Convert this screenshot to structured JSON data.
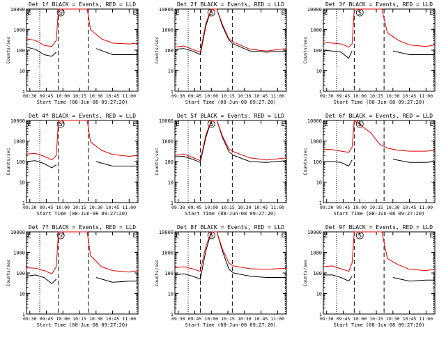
{
  "figure": {
    "start_time_label": "Start Time (08-Jun-08 09:27:20)",
    "ylabel": "Counts/sec"
  },
  "colors": {
    "events": "#000000",
    "lld": "#e00000",
    "axes": "#000000"
  },
  "chart_data": [
    {
      "type": "line",
      "title": "Det 1f BLACK = Events, RED = LLD",
      "xlabel": "Start Time (08-Jun-08 09:27:20)",
      "ylabel": "Counts/sec",
      "yscale": "log",
      "ylim": [
        1,
        10000
      ],
      "x_ticks": [
        "09:30",
        "09:45",
        "10:00",
        "10:15",
        "10:30",
        "10:45",
        "11:00"
      ],
      "y_ticks": [
        "1",
        "10",
        "100",
        "1000",
        "10000"
      ],
      "markers": [
        {
          "label": "E",
          "x": "09:27"
        },
        {
          "label": "S",
          "x": "09:58"
        },
        {
          "label": "E",
          "x": "11:05"
        }
      ],
      "dotted_lines": [
        "09:39",
        "11:07"
      ],
      "dashed_lines": [
        "09:56",
        "10:23"
      ],
      "series": [
        {
          "name": "Events",
          "color": "#000000",
          "x": [
            "09:27",
            "09:35",
            "09:43",
            "09:50",
            "09:54",
            "09:55",
            "10:23",
            "10:30",
            "10:45",
            "11:00",
            "11:08"
          ],
          "values": [
            140,
            110,
            60,
            50,
            80,
            null,
            null,
            120,
            60,
            60,
            60
          ]
        },
        {
          "name": "LLD",
          "color": "#e00000",
          "x": [
            "09:27",
            "09:35",
            "09:43",
            "09:50",
            "09:54",
            "09:56",
            "10:22",
            "10:25",
            "10:35",
            "10:45",
            "11:00",
            "11:08"
          ],
          "values": [
            350,
            300,
            170,
            150,
            300,
            10000,
            10000,
            1000,
            350,
            220,
            200,
            220
          ]
        }
      ]
    },
    {
      "type": "line",
      "title": "Det 2f BLACK = Events, RED = LLD",
      "xlabel": "Start Time (08-Jun-08 09:27:20)",
      "ylabel": "Counts/sec",
      "yscale": "log",
      "ylim": [
        1,
        10000
      ],
      "x_ticks": [
        "09:30",
        "09:45",
        "10:00",
        "10:15",
        "10:30",
        "10:45",
        "11:00"
      ],
      "y_ticks": [
        "1",
        "10",
        "100",
        "1000",
        "10000"
      ],
      "markers": [
        {
          "label": "E",
          "x": "09:27"
        },
        {
          "label": "S",
          "x": "10:00"
        },
        {
          "label": "E",
          "x": "11:05"
        }
      ],
      "dotted_lines": [
        "09:39",
        "11:07"
      ],
      "dashed_lines": [
        "09:50",
        "10:19"
      ],
      "series": [
        {
          "name": "Events",
          "color": "#000000",
          "x": [
            "09:27",
            "09:35",
            "09:43",
            "09:50",
            "09:55",
            "10:00",
            "10:05",
            "10:10",
            "10:16",
            "10:20",
            "10:35",
            "10:50",
            "11:08"
          ],
          "values": [
            110,
            120,
            90,
            60,
            1500,
            10000,
            10000,
            1500,
            300,
            200,
            90,
            80,
            90
          ]
        },
        {
          "name": "LLD",
          "color": "#e00000",
          "x": [
            "09:27",
            "09:35",
            "09:43",
            "09:50",
            "09:55",
            "10:00",
            "10:05",
            "10:10",
            "10:16",
            "10:20",
            "10:35",
            "10:50",
            "11:08"
          ],
          "values": [
            140,
            160,
            110,
            80,
            2000,
            10000,
            10000,
            1800,
            350,
            250,
            110,
            90,
            120
          ]
        }
      ]
    },
    {
      "type": "line",
      "title": "Det 3f BLACK = Events, RED = LLD",
      "xlabel": "Start Time (08-Jun-08 09:27:20)",
      "ylabel": "Counts/sec",
      "yscale": "log",
      "ylim": [
        1,
        10000
      ],
      "x_ticks": [
        "09:30",
        "09:45",
        "10:00",
        "10:15",
        "10:30",
        "10:45",
        "11:00"
      ],
      "y_ticks": [
        "1",
        "10",
        "100",
        "1000",
        "10000"
      ],
      "markers": [
        {
          "label": "E",
          "x": "09:27"
        },
        {
          "label": "S",
          "x": "10:00"
        },
        {
          "label": "E",
          "x": "11:05"
        }
      ],
      "dotted_lines": [
        "09:39",
        "11:07"
      ],
      "dashed_lines": [
        "09:55",
        "10:22"
      ],
      "series": [
        {
          "name": "Events",
          "color": "#000000",
          "x": [
            "09:27",
            "09:35",
            "09:43",
            "09:50",
            "09:53",
            "09:55",
            "10:22",
            "10:30",
            "10:45",
            "11:00",
            "11:08"
          ],
          "values": [
            100,
            90,
            80,
            40,
            90,
            null,
            null,
            90,
            60,
            60,
            60
          ]
        },
        {
          "name": "LLD",
          "color": "#e00000",
          "x": [
            "09:27",
            "09:35",
            "09:43",
            "09:50",
            "09:53",
            "09:55",
            "10:20",
            "10:25",
            "10:35",
            "10:45",
            "11:00",
            "11:08"
          ],
          "values": [
            250,
            220,
            200,
            140,
            200,
            10000,
            10000,
            700,
            300,
            180,
            150,
            180
          ]
        }
      ]
    },
    {
      "type": "line",
      "title": "Det 4f BLACK = Events, RED = LLD",
      "xlabel": "Start Time (08-Jun-08 09:27:20)",
      "ylabel": "Counts/sec",
      "yscale": "log",
      "ylim": [
        1,
        10000
      ],
      "x_ticks": [
        "09:30",
        "09:45",
        "10:00",
        "10:15",
        "10:30",
        "10:45",
        "11:00"
      ],
      "y_ticks": [
        "1",
        "10",
        "100",
        "1000",
        "10000"
      ],
      "markers": [
        {
          "label": "E",
          "x": "09:27"
        },
        {
          "label": "S",
          "x": "09:58"
        },
        {
          "label": "E",
          "x": "11:05"
        }
      ],
      "dotted_lines": [
        "09:39",
        "11:07"
      ],
      "dashed_lines": [
        "09:56",
        "10:23"
      ],
      "series": [
        {
          "name": "Events",
          "color": "#000000",
          "x": [
            "09:27",
            "09:35",
            "09:43",
            "09:50",
            "09:54",
            "09:55",
            "10:23",
            "10:30",
            "10:45",
            "11:00",
            "11:08"
          ],
          "values": [
            100,
            110,
            80,
            50,
            70,
            null,
            null,
            100,
            60,
            60,
            60
          ]
        },
        {
          "name": "LLD",
          "color": "#e00000",
          "x": [
            "09:27",
            "09:35",
            "09:43",
            "09:50",
            "09:54",
            "09:56",
            "10:22",
            "10:25",
            "10:35",
            "10:45",
            "11:00",
            "11:08"
          ],
          "values": [
            230,
            250,
            180,
            120,
            200,
            10000,
            10000,
            900,
            350,
            220,
            180,
            200
          ]
        }
      ]
    },
    {
      "type": "line",
      "title": "Det 5f BLACK = Events, RED = LLD",
      "xlabel": "Start Time (08-Jun-08 09:27:20)",
      "ylabel": "Counts/sec",
      "yscale": "log",
      "ylim": [
        1,
        10000
      ],
      "x_ticks": [
        "09:30",
        "09:45",
        "10:00",
        "10:15",
        "10:30",
        "10:45",
        "11:00"
      ],
      "y_ticks": [
        "1",
        "10",
        "100",
        "1000",
        "10000"
      ],
      "markers": [
        {
          "label": "E",
          "x": "09:27"
        },
        {
          "label": "S",
          "x": "10:00"
        },
        {
          "label": "E",
          "x": "11:05"
        }
      ],
      "dotted_lines": [
        "09:39",
        "11:07"
      ],
      "dashed_lines": [
        "09:50",
        "10:19"
      ],
      "series": [
        {
          "name": "Events",
          "color": "#000000",
          "x": [
            "09:27",
            "09:35",
            "09:43",
            "09:50",
            "09:55",
            "10:00",
            "10:05",
            "10:10",
            "10:16",
            "10:20",
            "10:35",
            "10:50",
            "11:08"
          ],
          "values": [
            170,
            180,
            130,
            90,
            1500,
            10000,
            10000,
            1500,
            300,
            200,
            100,
            90,
            110
          ]
        },
        {
          "name": "LLD",
          "color": "#e00000",
          "x": [
            "09:27",
            "09:35",
            "09:43",
            "09:50",
            "09:55",
            "10:00",
            "10:05",
            "10:10",
            "10:16",
            "10:20",
            "10:35",
            "10:50",
            "11:08"
          ],
          "values": [
            200,
            230,
            160,
            110,
            2000,
            10000,
            10000,
            1800,
            400,
            300,
            150,
            120,
            150
          ]
        }
      ]
    },
    {
      "type": "line",
      "title": "Det 6f BLACK = Events, RED = LLD",
      "xlabel": "Start Time (08-Jun-08 09:27:20)",
      "ylabel": "Counts/sec",
      "yscale": "log",
      "ylim": [
        1,
        10000
      ],
      "x_ticks": [
        "09:30",
        "09:45",
        "10:00",
        "10:15",
        "10:30",
        "10:45",
        "11:00"
      ],
      "y_ticks": [
        "1",
        "10",
        "100",
        "1000",
        "10000"
      ],
      "markers": [
        {
          "label": "E",
          "x": "09:27"
        },
        {
          "label": "S",
          "x": "10:00"
        },
        {
          "label": "E",
          "x": "11:05"
        }
      ],
      "dotted_lines": [
        "09:39",
        "11:07"
      ],
      "dashed_lines": [
        "09:55",
        "10:22"
      ],
      "series": [
        {
          "name": "Events",
          "color": "#000000",
          "x": [
            "09:27",
            "09:35",
            "09:43",
            "09:50",
            "09:53",
            "09:55",
            "10:22",
            "10:30",
            "10:45",
            "11:00",
            "11:08"
          ],
          "values": [
            100,
            100,
            90,
            60,
            120,
            null,
            null,
            130,
            90,
            90,
            100
          ]
        },
        {
          "name": "LLD",
          "color": "#e00000",
          "x": [
            "09:27",
            "09:35",
            "09:43",
            "09:50",
            "09:53",
            "09:55",
            "10:10",
            "10:18",
            "10:25",
            "10:35",
            "10:45",
            "11:00",
            "11:08"
          ],
          "values": [
            400,
            380,
            320,
            280,
            500,
            10000,
            2500,
            700,
            450,
            350,
            320,
            320,
            350
          ]
        }
      ]
    },
    {
      "type": "line",
      "title": "Det 7f BLACK = Events, RED = LLD",
      "xlabel": "Start Time (08-Jun-08 09:27:20)",
      "ylabel": "Counts/sec",
      "yscale": "log",
      "ylim": [
        1,
        10000
      ],
      "x_ticks": [
        "09:30",
        "09:45",
        "10:00",
        "10:15",
        "10:30",
        "10:45",
        "11:00"
      ],
      "y_ticks": [
        "1",
        "10",
        "100",
        "1000",
        "10000"
      ],
      "markers": [
        {
          "label": "E",
          "x": "09:27"
        },
        {
          "label": "S",
          "x": "09:58"
        },
        {
          "label": "E",
          "x": "11:05"
        }
      ],
      "dotted_lines": [
        "09:39",
        "11:07"
      ],
      "dashed_lines": [
        "09:56",
        "10:23"
      ],
      "series": [
        {
          "name": "Events",
          "color": "#000000",
          "x": [
            "09:27",
            "09:35",
            "09:43",
            "09:50",
            "09:54",
            "09:55",
            "10:23",
            "10:30",
            "10:45",
            "11:00",
            "11:08"
          ],
          "values": [
            70,
            80,
            60,
            30,
            50,
            null,
            null,
            60,
            35,
            40,
            40
          ]
        },
        {
          "name": "LLD",
          "color": "#e00000",
          "x": [
            "09:27",
            "09:35",
            "09:43",
            "09:50",
            "09:54",
            "09:56",
            "10:22",
            "10:25",
            "10:35",
            "10:45",
            "11:00",
            "11:08"
          ],
          "values": [
            180,
            170,
            130,
            90,
            200,
            10000,
            10000,
            700,
            200,
            130,
            110,
            130
          ]
        }
      ]
    },
    {
      "type": "line",
      "title": "Det 8f BLACK = Events, RED = LLD",
      "xlabel": "Start Time (08-Jun-08 09:27:20)",
      "ylabel": "Counts/sec",
      "yscale": "log",
      "ylim": [
        1,
        10000
      ],
      "x_ticks": [
        "09:30",
        "09:45",
        "10:00",
        "10:15",
        "10:30",
        "10:45",
        "11:00"
      ],
      "y_ticks": [
        "1",
        "10",
        "100",
        "1000",
        "10000"
      ],
      "markers": [
        {
          "label": "E",
          "x": "09:27"
        },
        {
          "label": "S",
          "x": "10:00"
        },
        {
          "label": "E",
          "x": "11:05"
        }
      ],
      "dotted_lines": [
        "09:39",
        "11:07"
      ],
      "dashed_lines": [
        "09:50",
        "10:19"
      ],
      "series": [
        {
          "name": "Events",
          "color": "#000000",
          "x": [
            "09:27",
            "09:35",
            "09:43",
            "09:50",
            "09:55",
            "10:00",
            "10:05",
            "10:10",
            "10:16",
            "10:20",
            "10:35",
            "10:50",
            "11:08"
          ],
          "values": [
            80,
            90,
            70,
            50,
            1200,
            10000,
            10000,
            1200,
            150,
            100,
            70,
            60,
            60
          ]
        },
        {
          "name": "LLD",
          "color": "#e00000",
          "x": [
            "09:27",
            "09:35",
            "09:43",
            "09:50",
            "09:55",
            "10:00",
            "10:05",
            "10:10",
            "10:16",
            "10:20",
            "10:35",
            "10:50",
            "11:08"
          ],
          "values": [
            180,
            200,
            160,
            120,
            2000,
            10000,
            10000,
            1500,
            300,
            220,
            160,
            150,
            170
          ]
        }
      ]
    },
    {
      "type": "line",
      "title": "Det 9f BLACK = Events, RED = LLD",
      "xlabel": "Start Time (08-Jun-08 09:27:20)",
      "ylabel": "Counts/sec",
      "yscale": "log",
      "ylim": [
        1,
        10000
      ],
      "x_ticks": [
        "09:30",
        "09:45",
        "10:00",
        "10:15",
        "10:30",
        "10:45",
        "11:00"
      ],
      "y_ticks": [
        "1",
        "10",
        "100",
        "1000",
        "10000"
      ],
      "markers": [
        {
          "label": "E",
          "x": "09:27"
        },
        {
          "label": "S",
          "x": "10:00"
        },
        {
          "label": "E",
          "x": "11:05"
        }
      ],
      "dotted_lines": [
        "09:39",
        "11:07"
      ],
      "dashed_lines": [
        "09:55",
        "10:22"
      ],
      "series": [
        {
          "name": "Events",
          "color": "#000000",
          "x": [
            "09:27",
            "09:35",
            "09:43",
            "09:50",
            "09:53",
            "09:55",
            "10:22",
            "10:30",
            "10:45",
            "11:00",
            "11:08"
          ],
          "values": [
            80,
            80,
            60,
            40,
            70,
            null,
            null,
            60,
            40,
            45,
            45
          ]
        },
        {
          "name": "LLD",
          "color": "#e00000",
          "x": [
            "09:27",
            "09:35",
            "09:43",
            "09:50",
            "09:53",
            "09:55",
            "10:20",
            "10:25",
            "10:35",
            "10:45",
            "11:00",
            "11:08"
          ],
          "values": [
            200,
            220,
            160,
            120,
            300,
            10000,
            10000,
            500,
            250,
            150,
            130,
            150
          ]
        }
      ]
    }
  ]
}
